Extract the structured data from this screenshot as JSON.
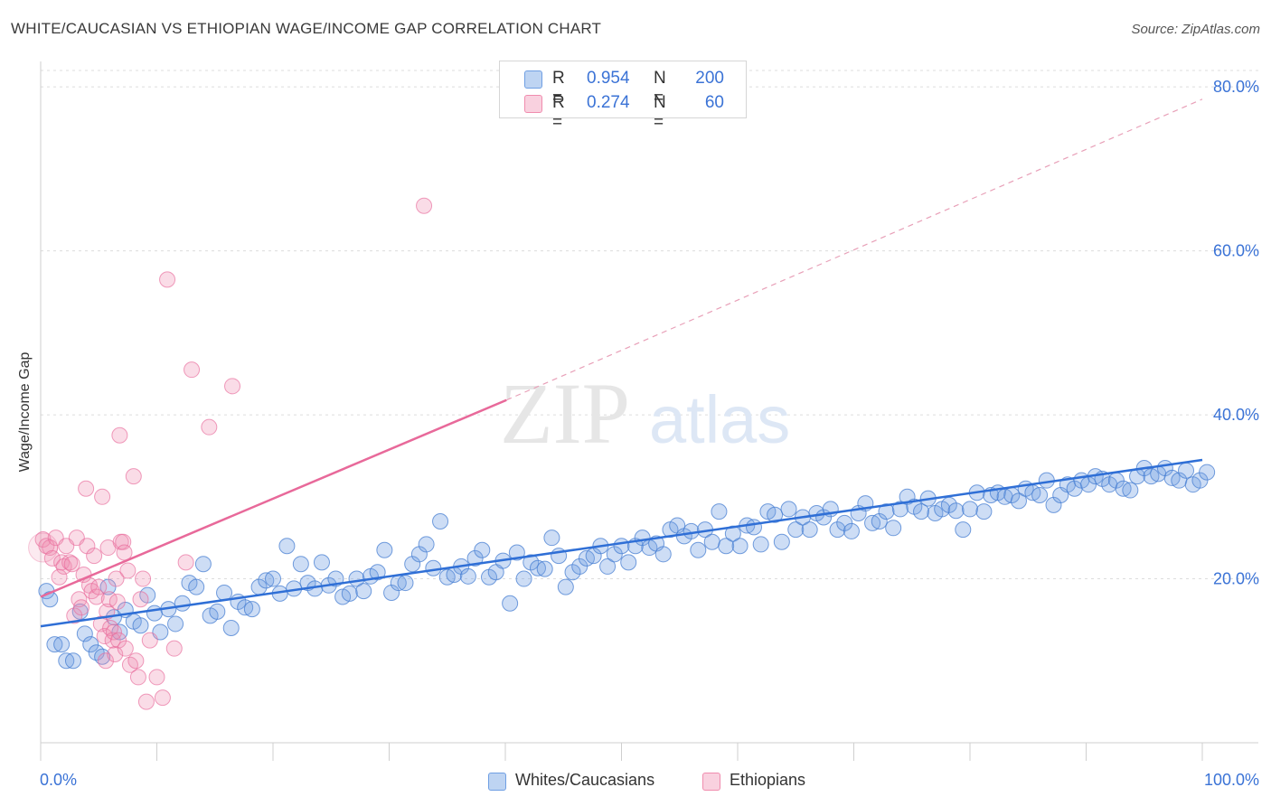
{
  "header": {
    "title": "WHITE/CAUCASIAN VS ETHIOPIAN WAGE/INCOME GAP CORRELATION CHART",
    "source": "Source: ZipAtlas.com"
  },
  "watermark": {
    "zip": "ZIP",
    "atlas": "atlas"
  },
  "legend_top": {
    "rows": [
      {
        "r_label": "R =",
        "r_value": "0.954",
        "n_label": "N =",
        "n_value": "200",
        "color": "#6f9fe3"
      },
      {
        "r_label": "R =",
        "r_value": "0.274",
        "n_label": "N =",
        "n_value": "60",
        "color": "#f08cae"
      }
    ]
  },
  "legend_bottom": {
    "items": [
      {
        "label": "Whites/Caucasians",
        "color": "#6f9fe3"
      },
      {
        "label": "Ethiopians",
        "color": "#f08cae"
      }
    ]
  },
  "chart_data": {
    "type": "scatter",
    "title": "WHITE/CAUCASIAN VS ETHIOPIAN WAGE/INCOME GAP CORRELATION CHART",
    "xlabel": "",
    "ylabel": "Wage/Income Gap",
    "xlim": [
      0,
      100
    ],
    "ylim": [
      0,
      82
    ],
    "x_tick_labels": [
      "0.0%",
      "100.0%"
    ],
    "y_ticks": [
      20,
      40,
      60,
      80
    ],
    "y_tick_labels": [
      "20.0%",
      "40.0%",
      "60.0%",
      "80.0%"
    ],
    "grid": true,
    "legend_position": "top-center",
    "series": [
      {
        "name": "Whites/Caucasians",
        "color": "#6f9fe3",
        "line_color": "#2f6fd6",
        "r": 0.954,
        "n": 200,
        "trend": {
          "x": [
            0,
            100
          ],
          "y": [
            14.2,
            34.5
          ]
        },
        "points": [
          [
            0.5,
            18.5
          ],
          [
            0.8,
            17.5
          ],
          [
            1.2,
            12
          ],
          [
            1.8,
            12
          ],
          [
            2.2,
            10
          ],
          [
            2.8,
            10
          ],
          [
            3.4,
            16
          ],
          [
            3.8,
            13.3
          ],
          [
            4.3,
            12
          ],
          [
            4.8,
            11
          ],
          [
            5.3,
            10.5
          ],
          [
            5.8,
            19
          ],
          [
            6.3,
            15.3
          ],
          [
            6.8,
            13.5
          ],
          [
            7.3,
            16.2
          ],
          [
            8,
            14.8
          ],
          [
            8.6,
            14.3
          ],
          [
            9.2,
            18
          ],
          [
            9.8,
            15.8
          ],
          [
            10.3,
            13.5
          ],
          [
            11,
            16.3
          ],
          [
            11.6,
            14.5
          ],
          [
            12.2,
            17
          ],
          [
            12.8,
            19.5
          ],
          [
            13.4,
            19
          ],
          [
            14,
            21.8
          ],
          [
            14.6,
            15.5
          ],
          [
            15.2,
            16
          ],
          [
            15.8,
            18.3
          ],
          [
            16.4,
            14
          ],
          [
            17,
            17.2
          ],
          [
            17.6,
            16.5
          ],
          [
            18.2,
            16.3
          ],
          [
            18.8,
            19
          ],
          [
            19.4,
            19.8
          ],
          [
            20,
            20
          ],
          [
            20.6,
            18.2
          ],
          [
            21.2,
            24
          ],
          [
            21.8,
            18.8
          ],
          [
            22.4,
            21.8
          ],
          [
            23,
            19.5
          ],
          [
            23.6,
            18.8
          ],
          [
            24.2,
            22
          ],
          [
            24.8,
            19.2
          ],
          [
            25.4,
            20
          ],
          [
            26,
            17.8
          ],
          [
            26.6,
            18.2
          ],
          [
            27.2,
            20
          ],
          [
            27.8,
            18.5
          ],
          [
            28.4,
            20.3
          ],
          [
            29,
            20.8
          ],
          [
            29.6,
            23.5
          ],
          [
            30.2,
            18.3
          ],
          [
            30.8,
            19.5
          ],
          [
            31.4,
            19.5
          ],
          [
            32,
            21.8
          ],
          [
            32.6,
            23
          ],
          [
            33.2,
            24.2
          ],
          [
            33.8,
            21.3
          ],
          [
            34.4,
            27
          ],
          [
            35,
            20.2
          ],
          [
            35.6,
            20.5
          ],
          [
            36.2,
            21.5
          ],
          [
            36.8,
            20.3
          ],
          [
            37.4,
            22.5
          ],
          [
            38,
            23.5
          ],
          [
            38.6,
            20.2
          ],
          [
            39.2,
            20.8
          ],
          [
            39.8,
            22.2
          ],
          [
            40.4,
            17
          ],
          [
            41,
            23.2
          ],
          [
            41.6,
            20
          ],
          [
            42.2,
            22
          ],
          [
            42.8,
            21.3
          ],
          [
            43.4,
            21.2
          ],
          [
            44,
            25
          ],
          [
            44.6,
            22.8
          ],
          [
            45.2,
            19
          ],
          [
            45.8,
            20.8
          ],
          [
            46.4,
            21.5
          ],
          [
            47,
            22.5
          ],
          [
            47.6,
            22.8
          ],
          [
            48.2,
            24
          ],
          [
            48.8,
            21.5
          ],
          [
            49.4,
            23
          ],
          [
            50,
            24
          ],
          [
            50.6,
            22
          ],
          [
            51.2,
            24
          ],
          [
            51.8,
            25
          ],
          [
            52.4,
            23.8
          ],
          [
            53,
            24.3
          ],
          [
            53.6,
            23
          ],
          [
            54.2,
            26
          ],
          [
            54.8,
            26.5
          ],
          [
            55.4,
            25.2
          ],
          [
            56,
            25.8
          ],
          [
            56.6,
            23.5
          ],
          [
            57.2,
            26
          ],
          [
            57.8,
            24.5
          ],
          [
            58.4,
            28.2
          ],
          [
            59,
            24
          ],
          [
            59.6,
            25.5
          ],
          [
            60.2,
            24
          ],
          [
            60.8,
            26.5
          ],
          [
            61.4,
            26.3
          ],
          [
            62,
            24.2
          ],
          [
            62.6,
            28.2
          ],
          [
            63.2,
            27.8
          ],
          [
            63.8,
            24.5
          ],
          [
            64.4,
            28.5
          ],
          [
            65,
            26
          ],
          [
            65.6,
            27.5
          ],
          [
            66.2,
            26
          ],
          [
            66.8,
            28
          ],
          [
            67.4,
            27.5
          ],
          [
            68,
            28.5
          ],
          [
            68.6,
            26
          ],
          [
            69.2,
            26.8
          ],
          [
            69.8,
            25.8
          ],
          [
            70.4,
            28
          ],
          [
            71,
            29.2
          ],
          [
            71.6,
            26.8
          ],
          [
            72.2,
            27
          ],
          [
            72.8,
            28.2
          ],
          [
            73.4,
            26.2
          ],
          [
            74,
            28.5
          ],
          [
            74.6,
            30
          ],
          [
            75.2,
            28.8
          ],
          [
            75.8,
            28.2
          ],
          [
            76.4,
            29.8
          ],
          [
            77,
            28
          ],
          [
            77.6,
            28.5
          ],
          [
            78.2,
            29
          ],
          [
            78.8,
            28.3
          ],
          [
            79.4,
            26
          ],
          [
            80,
            28.5
          ],
          [
            80.6,
            30.5
          ],
          [
            81.2,
            28.2
          ],
          [
            81.8,
            30.2
          ],
          [
            82.4,
            30.5
          ],
          [
            83,
            30
          ],
          [
            83.6,
            30.2
          ],
          [
            84.2,
            29.5
          ],
          [
            84.8,
            31
          ],
          [
            85.4,
            30.5
          ],
          [
            86,
            30.2
          ],
          [
            86.6,
            32
          ],
          [
            87.2,
            29
          ],
          [
            87.8,
            30.2
          ],
          [
            88.4,
            31.5
          ],
          [
            89,
            31
          ],
          [
            89.6,
            32
          ],
          [
            90.2,
            31.5
          ],
          [
            90.8,
            32.5
          ],
          [
            91.4,
            32.2
          ],
          [
            92,
            31.5
          ],
          [
            92.6,
            32
          ],
          [
            93.2,
            31
          ],
          [
            93.8,
            30.8
          ],
          [
            94.4,
            32.5
          ],
          [
            95,
            33.5
          ],
          [
            95.6,
            32.5
          ],
          [
            96.2,
            32.8
          ],
          [
            96.8,
            33.5
          ],
          [
            97.4,
            32.3
          ],
          [
            98,
            32
          ],
          [
            98.6,
            33.2
          ],
          [
            99.2,
            31.5
          ],
          [
            99.8,
            32
          ],
          [
            100.4,
            33
          ]
        ]
      },
      {
        "name": "Ethiopians",
        "color": "#f08cae",
        "line_color": "#e8699a",
        "r": 0.274,
        "n": 60,
        "trend": {
          "x": [
            0,
            40.1
          ],
          "y": [
            17.8,
            41.8
          ]
        },
        "trend_extension": {
          "x": [
            40.1,
            100
          ],
          "y": [
            41.8,
            78.5
          ]
        },
        "points": [
          [
            0.2,
            24.8
          ],
          [
            0.5,
            24
          ],
          [
            0.8,
            23.8
          ],
          [
            1,
            22.5
          ],
          [
            1.3,
            25
          ],
          [
            1.6,
            20.2
          ],
          [
            1.8,
            22
          ],
          [
            2,
            21.5
          ],
          [
            2.2,
            24
          ],
          [
            2.5,
            22
          ],
          [
            2.7,
            21.8
          ],
          [
            2.9,
            15.5
          ],
          [
            3.1,
            25
          ],
          [
            3.3,
            17.5
          ],
          [
            3.5,
            16.5
          ],
          [
            3.7,
            20.5
          ],
          [
            3.9,
            31
          ],
          [
            4,
            24
          ],
          [
            4.2,
            19.2
          ],
          [
            4.4,
            18.5
          ],
          [
            4.6,
            22.8
          ],
          [
            4.8,
            17.8
          ],
          [
            5,
            19
          ],
          [
            5.2,
            14.5
          ],
          [
            5.3,
            30
          ],
          [
            5.5,
            13
          ],
          [
            5.6,
            10
          ],
          [
            5.7,
            16
          ],
          [
            5.8,
            23.8
          ],
          [
            5.9,
            17.5
          ],
          [
            6,
            14
          ],
          [
            6.2,
            12.5
          ],
          [
            6.3,
            13.5
          ],
          [
            6.4,
            10.8
          ],
          [
            6.5,
            20
          ],
          [
            6.6,
            17.2
          ],
          [
            6.7,
            12.5
          ],
          [
            6.8,
            37.5
          ],
          [
            6.9,
            24.5
          ],
          [
            7.1,
            24.5
          ],
          [
            7.2,
            23.2
          ],
          [
            7.3,
            11.5
          ],
          [
            7.5,
            21
          ],
          [
            7.7,
            9.5
          ],
          [
            8,
            32.5
          ],
          [
            8.2,
            10
          ],
          [
            8.4,
            8
          ],
          [
            8.6,
            17.5
          ],
          [
            8.8,
            20
          ],
          [
            9.1,
            5
          ],
          [
            9.4,
            12.5
          ],
          [
            10,
            8
          ],
          [
            10.5,
            5.5
          ],
          [
            10.9,
            56.5
          ],
          [
            11.5,
            11.5
          ],
          [
            12.5,
            22
          ],
          [
            13,
            45.5
          ],
          [
            14.5,
            38.5
          ],
          [
            16.5,
            43.5
          ],
          [
            33,
            65.5
          ]
        ]
      }
    ]
  }
}
